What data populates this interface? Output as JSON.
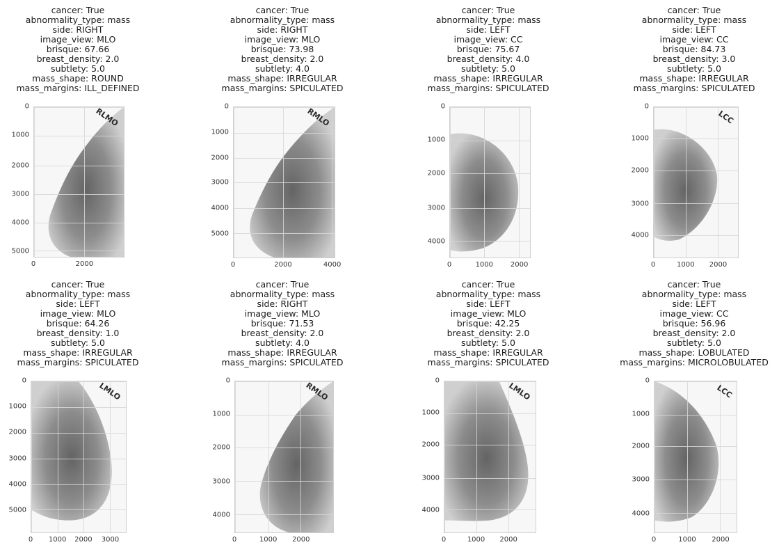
{
  "panels": [
    {
      "caption": [
        "cancer: True",
        "abnormality_type: mass",
        "side: RIGHT",
        "image_view: MLO",
        "brisque: 67.66",
        "breast_density: 2.0",
        "subtlety: 5.0",
        "mass_shape: ROUND",
        "mass_margins: ILL_DEFINED"
      ],
      "xticks": [
        "0",
        "2000"
      ],
      "yticks": [
        "0",
        "1000",
        "2000",
        "3000",
        "4000",
        "5000"
      ],
      "marker": "RLMO"
    },
    {
      "caption": [
        "cancer: True",
        "abnormality_type: mass",
        "side: RIGHT",
        "image_view: MLO",
        "brisque: 73.98",
        "breast_density: 2.0",
        "subtlety: 4.0",
        "mass_shape: IRREGULAR",
        "mass_margins: SPICULATED"
      ],
      "xticks": [
        "0",
        "2000",
        "4000"
      ],
      "yticks": [
        "0",
        "1000",
        "2000",
        "3000",
        "4000",
        "5000"
      ],
      "marker": "RMLO"
    },
    {
      "caption": [
        "cancer: True",
        "abnormality_type: mass",
        "side: LEFT",
        "image_view: CC",
        "brisque: 75.67",
        "breast_density: 4.0",
        "subtlety: 5.0",
        "mass_shape: IRREGULAR",
        "mass_margins: SPICULATED"
      ],
      "xticks": [
        "0",
        "1000",
        "2000"
      ],
      "yticks": [
        "0",
        "1000",
        "2000",
        "3000",
        "4000"
      ],
      "marker": ""
    },
    {
      "caption": [
        "cancer: True",
        "abnormality_type: mass",
        "side: LEFT",
        "image_view: CC",
        "brisque: 84.73",
        "breast_density: 3.0",
        "subtlety: 5.0",
        "mass_shape: IRREGULAR",
        "mass_margins: SPICULATED"
      ],
      "xticks": [
        "0",
        "1000",
        "2000"
      ],
      "yticks": [
        "0",
        "1000",
        "2000",
        "3000",
        "4000"
      ],
      "marker": "LCC"
    },
    {
      "caption": [
        "cancer: True",
        "abnormality_type: mass",
        "side: LEFT",
        "image_view: MLO",
        "brisque: 64.26",
        "breast_density: 1.0",
        "subtlety: 5.0",
        "mass_shape: IRREGULAR",
        "mass_margins: SPICULATED"
      ],
      "xticks": [
        "0",
        "1000",
        "2000",
        "3000"
      ],
      "yticks": [
        "0",
        "1000",
        "2000",
        "3000",
        "4000",
        "5000"
      ],
      "marker": "LMLO"
    },
    {
      "caption": [
        "cancer: True",
        "abnormality_type: mass",
        "side: RIGHT",
        "image_view: MLO",
        "brisque: 71.53",
        "breast_density: 2.0",
        "subtlety: 4.0",
        "mass_shape: IRREGULAR",
        "mass_margins: SPICULATED"
      ],
      "xticks": [
        "0",
        "1000",
        "2000"
      ],
      "yticks": [
        "0",
        "1000",
        "2000",
        "3000",
        "4000"
      ],
      "marker": "RMLO"
    },
    {
      "caption": [
        "cancer: True",
        "abnormality_type: mass",
        "side: LEFT",
        "image_view: MLO",
        "brisque: 42.25",
        "breast_density: 2.0",
        "subtlety: 5.0",
        "mass_shape: IRREGULAR",
        "mass_margins: SPICULATED"
      ],
      "xticks": [
        "0",
        "1000",
        "2000"
      ],
      "yticks": [
        "0",
        "1000",
        "2000",
        "3000",
        "4000"
      ],
      "marker": "LMLO"
    },
    {
      "caption": [
        "cancer: True",
        "abnormality_type: mass",
        "side: LEFT",
        "image_view: CC",
        "brisque: 56.96",
        "breast_density: 2.0",
        "subtlety: 5.0",
        "mass_shape: LOBULATED",
        "mass_margins: MICROLOBULATED"
      ],
      "xticks": [
        "0",
        "1000",
        "2000"
      ],
      "yticks": [
        "0",
        "1000",
        "2000",
        "3000",
        "4000"
      ],
      "marker": "LCC"
    }
  ]
}
